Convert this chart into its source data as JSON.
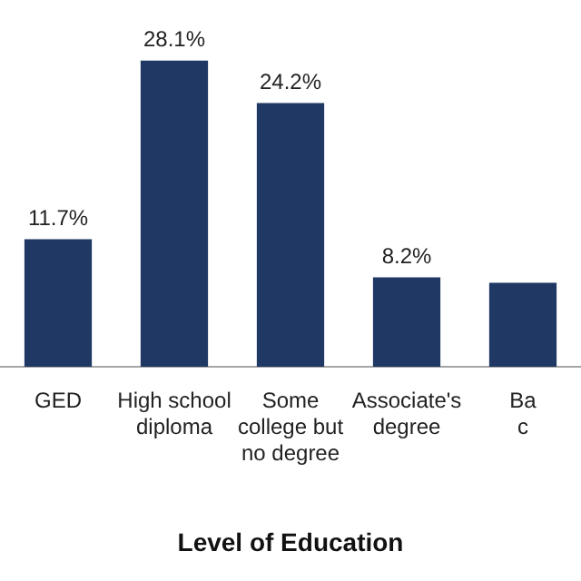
{
  "chart_data": {
    "type": "bar",
    "xlabel": "Level of Education",
    "categories": [
      "GED",
      "High school\ndiploma",
      "Some\ncollege but\nno degree",
      "Associate's\ndegree",
      "Ba\nc"
    ],
    "values": [
      11.7,
      28.1,
      24.2,
      8.2,
      7.7
    ],
    "value_labels": [
      "11.7%",
      "28.1%",
      "24.2%",
      "8.2%",
      null
    ],
    "color": "#1f3864",
    "grid": false,
    "legend": false
  }
}
